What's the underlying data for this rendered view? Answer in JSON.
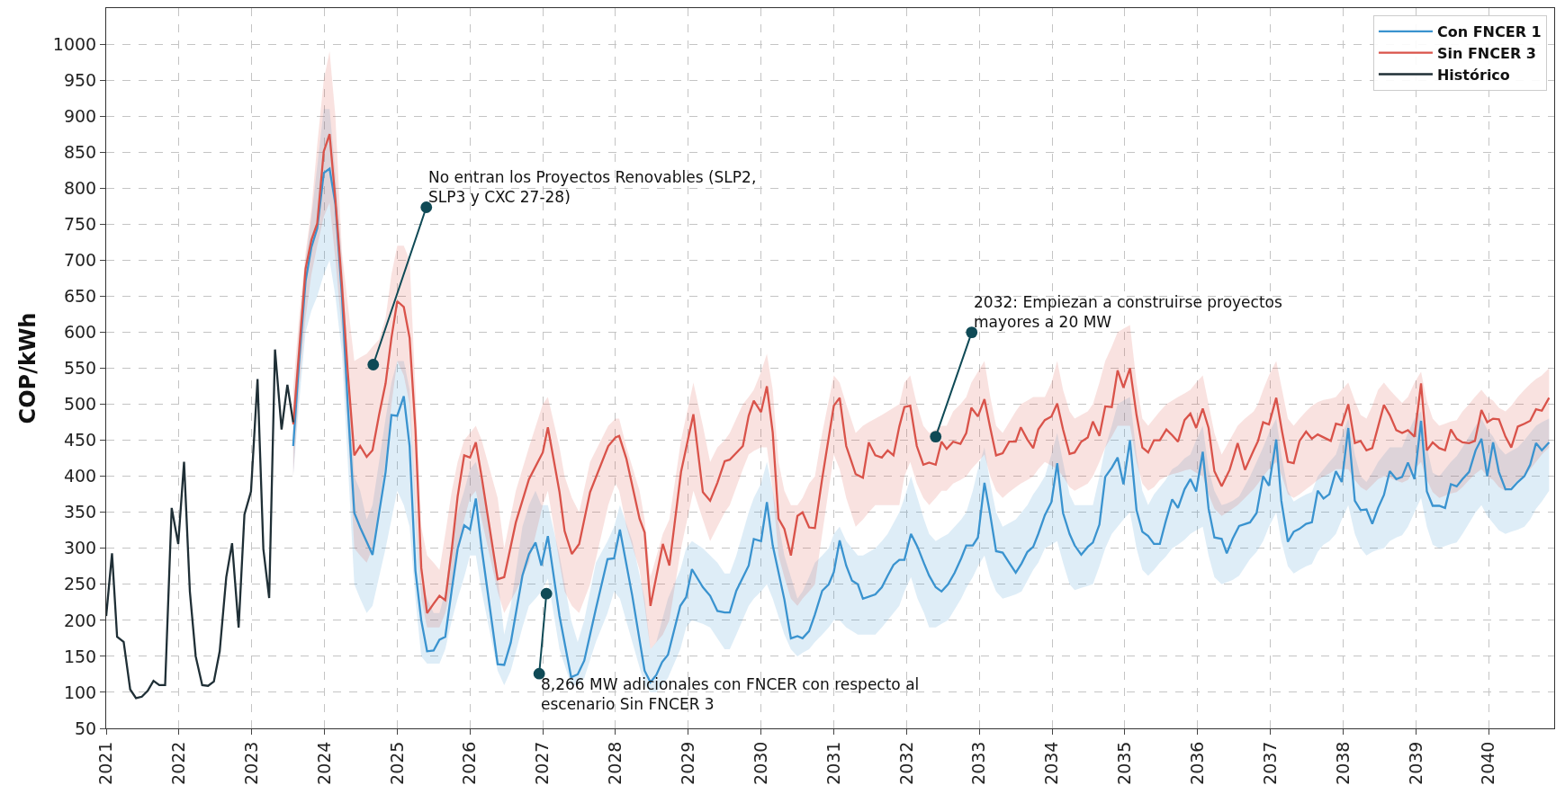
{
  "chart_data": {
    "type": "line",
    "ylabel": "COP/kWh",
    "xlim": [
      2021,
      2040.9
    ],
    "ylim": [
      50,
      1050
    ],
    "xticks": [
      2021,
      2022,
      2023,
      2024,
      2025,
      2026,
      2027,
      2028,
      2029,
      2030,
      2031,
      2032,
      2033,
      2034,
      2035,
      2036,
      2037,
      2038,
      2039,
      2040
    ],
    "yticks": [
      50,
      100,
      150,
      200,
      250,
      300,
      350,
      400,
      450,
      500,
      550,
      600,
      650,
      700,
      750,
      800,
      850,
      900,
      950,
      1000
    ],
    "grid": true,
    "legend": "top right",
    "marker": "none",
    "line_style": "solid",
    "series": [
      {
        "name": "Con FNCER 1",
        "color": "#3a93cf",
        "x": [
          2023.57,
          2023.65,
          2023.74,
          2023.82,
          2023.9,
          2023.99,
          2024.07,
          2024.15,
          2024.24,
          2024.32,
          2024.41,
          2024.49,
          2024.58,
          2024.66,
          2024.75,
          2024.84,
          2024.92,
          2025.0,
          2025.09,
          2025.17,
          2025.25,
          2025.33,
          2025.41,
          2025.5,
          2025.58,
          2025.66,
          2025.75,
          2025.83,
          2025.92,
          2026.0,
          2026.08,
          2026.16,
          2026.38,
          2026.47,
          2026.56,
          2026.72,
          2026.81,
          2026.9,
          2026.98,
          2027.07,
          2027.23,
          2027.39,
          2027.48,
          2027.57,
          2027.73,
          2027.89,
          2027.98,
          2028.06,
          2028.23,
          2028.4,
          2028.48,
          2028.56,
          2028.64,
          2028.72,
          2028.89,
          2028.97,
          2029.05,
          2029.2,
          2029.3,
          2029.4,
          2029.5,
          2029.57,
          2029.66,
          2029.83,
          2029.9,
          2030.0,
          2030.08,
          2030.16,
          2030.32,
          2030.41,
          2030.5,
          2030.57,
          2030.66,
          2030.74,
          2030.84,
          2030.93,
          2031.0,
          2031.08,
          2031.17,
          2031.25,
          2031.33,
          2031.4,
          2031.57,
          2031.66,
          2031.74,
          2031.82,
          2031.9,
          2031.97,
          2032.06,
          2032.15,
          2032.24,
          2032.31,
          2032.4,
          2032.48,
          2032.57,
          2032.66,
          2032.75,
          2032.82,
          2032.91,
          2032.98,
          2033.07,
          2033.15,
          2033.23,
          2033.32,
          2033.41,
          2033.5,
          2033.58,
          2033.66,
          2033.74,
          2033.81,
          2033.9,
          2033.99,
          2034.07,
          2034.15,
          2034.24,
          2034.31,
          2034.4,
          2034.49,
          2034.56,
          2034.65,
          2034.73,
          2034.82,
          2034.9,
          2034.98,
          2035.07,
          2035.16,
          2035.24,
          2035.32,
          2035.4,
          2035.48,
          2035.56,
          2035.65,
          2035.73,
          2035.82,
          2035.9,
          2035.98,
          2036.07,
          2036.15,
          2036.23,
          2036.33,
          2036.4,
          2036.48,
          2036.57,
          2036.72,
          2036.81,
          2036.9,
          2036.98,
          2037.08,
          2037.15,
          2037.24,
          2037.32,
          2037.4,
          2037.49,
          2037.57,
          2037.65,
          2037.73,
          2037.81,
          2037.9,
          2037.98,
          2038.07,
          2038.16,
          2038.24,
          2038.32,
          2038.4,
          2038.48,
          2038.56,
          2038.64,
          2038.73,
          2038.81,
          2038.89,
          2038.98,
          2039.07,
          2039.15,
          2039.23,
          2039.32,
          2039.4,
          2039.48,
          2039.56,
          2039.64,
          2039.73,
          2039.82,
          2039.9,
          2039.98,
          2040.06,
          2040.14,
          2040.23,
          2040.31,
          2040.4,
          2040.49,
          2040.57,
          2040.65,
          2040.73,
          2040.83
        ],
        "values": [
          442,
          558,
          671,
          718,
          744,
          821,
          827,
          778,
          651,
          499,
          349,
          329,
          309,
          291,
          349,
          406,
          485,
          484,
          511,
          442,
          269,
          200,
          157,
          158,
          173,
          177,
          243,
          299,
          332,
          326,
          369,
          300,
          139,
          138,
          169,
          262,
          292,
          308,
          276,
          317,
          206,
          121,
          125,
          144,
          216,
          285,
          286,
          326,
          234,
          130,
          114,
          124,
          142,
          152,
          220,
          232,
          271,
          246,
          234,
          213,
          211,
          211,
          241,
          276,
          313,
          310,
          364,
          304,
          229,
          175,
          178,
          175,
          185,
          208,
          241,
          250,
          267,
          311,
          276,
          255,
          250,
          230,
          236,
          246,
          262,
          277,
          284,
          284,
          320,
          302,
          279,
          262,
          246,
          240,
          250,
          266,
          286,
          304,
          304,
          315,
          391,
          346,
          296,
          294,
          280,
          266,
          279,
          295,
          302,
          320,
          346,
          364,
          418,
          349,
          320,
          304,
          291,
          302,
          308,
          333,
          399,
          412,
          426,
          389,
          450,
          353,
          323,
          317,
          306,
          306,
          337,
          368,
          356,
          382,
          396,
          379,
          434,
          355,
          315,
          313,
          293,
          313,
          331,
          336,
          349,
          400,
          387,
          451,
          366,
          309,
          323,
          327,
          334,
          336,
          380,
          369,
          375,
          407,
          392,
          467,
          366,
          353,
          354,
          334,
          356,
          374,
          407,
          396,
          399,
          419,
          396,
          477,
          379,
          359,
          359,
          356,
          389,
          386,
          396,
          406,
          436,
          452,
          400,
          447,
          406,
          382,
          382,
          392,
          400,
          416,
          446,
          436,
          447
        ],
        "lower": [
          400,
          500,
          600,
          630,
          650,
          680,
          700,
          650,
          570,
          420,
          250,
          230,
          210,
          220,
          260,
          300,
          340,
          380,
          360,
          330,
          230,
          150,
          140,
          140,
          140,
          160,
          200,
          230,
          260,
          290,
          290,
          240,
          130,
          110,
          130,
          190,
          220,
          230,
          240,
          258,
          160,
          110,
          110,
          120,
          170,
          210,
          240,
          230,
          170,
          110,
          100,
          100,
          110,
          120,
          160,
          190,
          200,
          195,
          190,
          175,
          160,
          160,
          180,
          220,
          230,
          240,
          250,
          230,
          180,
          160,
          150,
          155,
          160,
          170,
          180,
          190,
          200,
          200,
          190,
          185,
          180,
          180,
          180,
          190,
          200,
          210,
          220,
          240,
          260,
          230,
          210,
          190,
          190,
          195,
          200,
          215,
          230,
          245,
          260,
          275,
          290,
          260,
          240,
          230,
          233,
          236,
          240,
          255,
          270,
          280,
          300,
          305,
          310,
          280,
          250,
          242,
          245,
          248,
          250,
          275,
          300,
          320,
          330,
          340,
          350,
          300,
          270,
          262,
          270,
          280,
          288,
          300,
          305,
          312,
          320,
          325,
          330,
          290,
          260,
          250,
          253,
          256,
          262,
          285,
          295,
          310,
          330,
          350,
          310,
          275,
          265,
          270,
          275,
          278,
          295,
          305,
          310,
          320,
          340,
          360,
          320,
          300,
          290,
          295,
          298,
          300,
          310,
          315,
          318,
          330,
          350,
          370,
          330,
          305,
          300,
          303,
          306,
          308,
          320,
          335,
          350,
          360,
          345,
          335,
          325,
          320,
          323,
          326,
          330,
          340,
          355,
          365,
          380
        ],
        "upper": [
          490,
          600,
          700,
          760,
          830,
          910,
          910,
          820,
          700,
          560,
          400,
          380,
          340,
          360,
          420,
          480,
          530,
          560,
          560,
          520,
          360,
          250,
          230,
          210,
          210,
          240,
          310,
          350,
          380,
          410,
          420,
          390,
          260,
          180,
          220,
          330,
          360,
          380,
          360,
          360,
          290,
          200,
          170,
          200,
          280,
          310,
          330,
          360,
          310,
          230,
          160,
          170,
          200,
          230,
          270,
          300,
          310,
          300,
          290,
          280,
          265,
          265,
          290,
          350,
          370,
          390,
          420,
          380,
          290,
          260,
          230,
          240,
          260,
          280,
          290,
          300,
          320,
          330,
          310,
          300,
          290,
          290,
          300,
          310,
          320,
          335,
          350,
          370,
          400,
          370,
          340,
          320,
          310,
          315,
          320,
          330,
          340,
          350,
          380,
          410,
          440,
          390,
          350,
          330,
          335,
          340,
          350,
          360,
          375,
          385,
          400,
          430,
          460,
          420,
          375,
          360,
          360,
          360,
          360,
          400,
          440,
          470,
          500,
          505,
          510,
          430,
          380,
          360,
          375,
          385,
          395,
          410,
          415,
          425,
          430,
          450,
          470,
          410,
          380,
          360,
          362,
          366,
          372,
          400,
          420,
          440,
          460,
          480,
          430,
          380,
          365,
          370,
          375,
          378,
          400,
          410,
          420,
          430,
          455,
          480,
          430,
          400,
          392,
          405,
          420,
          430,
          440,
          440,
          440,
          460,
          480,
          490,
          440,
          405,
          400,
          410,
          420,
          428,
          440,
          455,
          470,
          480,
          465,
          455,
          440,
          430,
          435,
          440,
          450,
          460,
          470,
          475,
          480
        ]
      },
      {
        "name": "Sin FNCER 3",
        "color": "#d9534a",
        "x": [
          2023.57,
          2023.65,
          2023.74,
          2023.82,
          2023.9,
          2023.99,
          2024.07,
          2024.15,
          2024.24,
          2024.32,
          2024.41,
          2024.49,
          2024.58,
          2024.66,
          2024.75,
          2024.84,
          2024.92,
          2025.0,
          2025.09,
          2025.17,
          2025.25,
          2025.33,
          2025.41,
          2025.5,
          2025.58,
          2025.66,
          2025.75,
          2025.83,
          2025.92,
          2026.0,
          2026.08,
          2026.16,
          2026.38,
          2026.47,
          2026.63,
          2026.81,
          2027.0,
          2027.07,
          2027.23,
          2027.3,
          2027.4,
          2027.5,
          2027.65,
          2027.9,
          2028.0,
          2028.05,
          2028.15,
          2028.33,
          2028.4,
          2028.48,
          2028.65,
          2028.74,
          2028.9,
          2029.07,
          2029.2,
          2029.3,
          2029.4,
          2029.5,
          2029.57,
          2029.75,
          2029.83,
          2029.9,
          2030.0,
          2030.08,
          2030.16,
          2030.24,
          2030.32,
          2030.41,
          2030.5,
          2030.57,
          2030.66,
          2030.74,
          2030.84,
          2031.0,
          2031.08,
          2031.17,
          2031.3,
          2031.4,
          2031.48,
          2031.57,
          2031.66,
          2031.74,
          2031.82,
          2031.9,
          2031.97,
          2032.05,
          2032.14,
          2032.23,
          2032.31,
          2032.4,
          2032.48,
          2032.55,
          2032.64,
          2032.74,
          2032.82,
          2032.89,
          2032.98,
          2033.07,
          2033.15,
          2033.23,
          2033.32,
          2033.41,
          2033.5,
          2033.57,
          2033.66,
          2033.74,
          2033.81,
          2033.9,
          2033.99,
          2034.07,
          2034.15,
          2034.24,
          2034.31,
          2034.4,
          2034.49,
          2034.56,
          2034.65,
          2034.73,
          2034.82,
          2034.9,
          2034.98,
          2035.07,
          2035.16,
          2035.24,
          2035.32,
          2035.4,
          2035.48,
          2035.57,
          2035.65,
          2035.73,
          2035.82,
          2035.9,
          2035.98,
          2036.07,
          2036.15,
          2036.23,
          2036.33,
          2036.44,
          2036.55,
          2036.65,
          2036.77,
          2036.83,
          2036.9,
          2036.98,
          2037.08,
          2037.16,
          2037.24,
          2037.32,
          2037.4,
          2037.49,
          2037.57,
          2037.65,
          2037.73,
          2037.83,
          2037.9,
          2037.98,
          2038.07,
          2038.16,
          2038.24,
          2038.32,
          2038.4,
          2038.48,
          2038.56,
          2038.64,
          2038.73,
          2038.81,
          2038.89,
          2038.98,
          2039.07,
          2039.15,
          2039.23,
          2039.32,
          2039.4,
          2039.48,
          2039.56,
          2039.64,
          2039.73,
          2039.81,
          2039.9,
          2039.98,
          2040.06,
          2040.14,
          2040.23,
          2040.31,
          2040.4,
          2040.49,
          2040.57,
          2040.65,
          2040.73,
          2040.83
        ],
        "values": [
          472,
          572,
          688,
          728,
          751,
          851,
          875,
          784,
          665,
          545,
          429,
          442,
          427,
          436,
          485,
          529,
          592,
          643,
          635,
          592,
          465,
          273,
          210,
          223,
          234,
          228,
          299,
          372,
          429,
          426,
          447,
          399,
          257,
          260,
          336,
          396,
          433,
          468,
          378,
          324,
          292,
          306,
          378,
          442,
          454,
          456,
          424,
          341,
          322,
          220,
          306,
          276,
          406,
          486,
          378,
          366,
          391,
          421,
          423,
          442,
          484,
          505,
          489,
          525,
          461,
          341,
          327,
          290,
          345,
          350,
          329,
          328,
          397,
          498,
          509,
          442,
          403,
          398,
          447,
          429,
          426,
          436,
          429,
          469,
          496,
          498,
          442,
          416,
          419,
          416,
          448,
          438,
          448,
          445,
          460,
          495,
          483,
          507,
          467,
          429,
          432,
          448,
          448,
          468,
          451,
          439,
          465,
          478,
          483,
          501,
          465,
          431,
          433,
          448,
          454,
          476,
          456,
          497,
          496,
          547,
          523,
          550,
          485,
          440,
          433,
          450,
          450,
          465,
          457,
          448,
          478,
          487,
          467,
          494,
          467,
          407,
          386,
          409,
          446,
          409,
          436,
          449,
          475,
          472,
          509,
          462,
          420,
          418,
          449,
          462,
          452,
          458,
          454,
          449,
          473,
          471,
          500,
          446,
          449,
          436,
          439,
          469,
          499,
          485,
          464,
          460,
          464,
          455,
          529,
          436,
          447,
          439,
          436,
          465,
          452,
          447,
          446,
          449,
          492,
          475,
          480,
          479,
          455,
          440,
          469,
          473,
          477,
          493,
          491,
          509
        ],
        "lower": [
          400,
          520,
          620,
          680,
          720,
          760,
          780,
          700,
          600,
          470,
          300,
          290,
          280,
          300,
          360,
          420,
          500,
          560,
          540,
          500,
          350,
          230,
          190,
          190,
          190,
          210,
          250,
          300,
          340,
          370,
          380,
          340,
          240,
          210,
          240,
          280,
          360,
          380,
          280,
          240,
          220,
          210,
          250,
          360,
          390,
          380,
          330,
          270,
          220,
          160,
          180,
          200,
          300,
          380,
          340,
          310,
          330,
          350,
          360,
          410,
          430,
          435,
          440,
          440,
          380,
          290,
          260,
          230,
          220,
          230,
          240,
          250,
          320,
          430,
          410,
          370,
          330,
          340,
          350,
          360,
          360,
          360,
          360,
          360,
          400,
          420,
          390,
          370,
          360,
          370,
          380,
          380,
          390,
          395,
          400,
          410,
          420,
          430,
          400,
          380,
          370,
          378,
          385,
          390,
          395,
          400,
          410,
          420,
          415,
          410,
          400,
          385,
          380,
          385,
          390,
          400,
          420,
          440,
          455,
          470,
          470,
          470,
          420,
          390,
          380,
          385,
          395,
          400,
          403,
          405,
          408,
          410,
          405,
          400,
          375,
          355,
          345,
          352,
          360,
          370,
          382,
          390,
          400,
          410,
          420,
          400,
          375,
          370,
          375,
          382,
          388,
          395,
          400,
          405,
          410,
          410,
          410,
          395,
          385,
          380,
          388,
          396,
          400,
          398,
          394,
          391,
          395,
          410,
          420,
          395,
          378,
          370,
          373,
          376,
          378,
          385,
          395,
          403,
          410,
          400,
          395,
          385,
          380,
          385,
          395,
          400,
          410,
          420,
          430,
          440
        ],
        "upper": [
          520,
          620,
          710,
          770,
          860,
          950,
          990,
          900,
          710,
          640,
          560,
          565,
          570,
          580,
          590,
          620,
          680,
          720,
          720,
          700,
          520,
          330,
          290,
          280,
          270,
          320,
          380,
          420,
          450,
          460,
          470,
          450,
          370,
          300,
          380,
          440,
          500,
          510,
          440,
          400,
          370,
          350,
          420,
          470,
          480,
          480,
          440,
          380,
          340,
          260,
          320,
          340,
          450,
          530,
          470,
          420,
          440,
          450,
          460,
          500,
          510,
          520,
          545,
          570,
          520,
          420,
          380,
          360,
          360,
          370,
          390,
          400,
          460,
          540,
          530,
          500,
          460,
          470,
          475,
          480,
          485,
          490,
          495,
          500,
          530,
          540,
          500,
          470,
          460,
          465,
          470,
          470,
          490,
          500,
          510,
          530,
          545,
          560,
          510,
          470,
          460,
          475,
          490,
          500,
          505,
          510,
          510,
          510,
          530,
          560,
          520,
          490,
          480,
          485,
          490,
          500,
          530,
          560,
          580,
          600,
          605,
          610,
          530,
          480,
          470,
          480,
          490,
          500,
          505,
          510,
          515,
          520,
          530,
          540,
          500,
          460,
          430,
          450,
          470,
          480,
          490,
          500,
          520,
          540,
          560,
          520,
          480,
          470,
          480,
          490,
          498,
          503,
          506,
          508,
          510,
          520,
          530,
          505,
          485,
          480,
          498,
          520,
          530,
          520,
          510,
          502,
          510,
          530,
          545,
          505,
          480,
          470,
          473,
          476,
          478,
          490,
          500,
          510,
          520,
          510,
          505,
          495,
          490,
          498,
          510,
          520,
          528,
          535,
          540,
          550
        ]
      },
      {
        "name": "Histórico",
        "color": "#1f2f36",
        "x": [
          2021.0,
          2021.08,
          2021.15,
          2021.24,
          2021.33,
          2021.41,
          2021.49,
          2021.57,
          2021.65,
          2021.73,
          2021.81,
          2021.9,
          2021.99,
          2022.07,
          2022.15,
          2022.23,
          2022.32,
          2022.4,
          2022.48,
          2022.56,
          2022.65,
          2022.73,
          2022.82,
          2022.9,
          2022.99,
          2023.08,
          2023.16,
          2023.24,
          2023.32,
          2023.41,
          2023.49,
          2023.57
        ],
        "values": [
          206,
          293,
          177,
          170,
          104,
          92,
          94,
          102,
          116,
          110,
          110,
          356,
          306,
          420,
          240,
          150,
          110,
          109,
          115,
          157,
          260,
          307,
          190,
          347,
          379,
          535,
          299,
          231,
          576,
          465,
          527,
          475
        ]
      }
    ],
    "annotations": [
      {
        "text": "No entran los Proyectos Renovables (SLP2,\nSLP3 y CXC 27-28)",
        "x": 2024.67,
        "y": 555
      },
      {
        "text": "2032: Empiezan a construirse proyectos\nmayores a 20 MW",
        "x": 2032.4,
        "y": 455
      },
      {
        "text": "8,266 MW adicionales con FNCER con respecto al\nescenario Sin FNCER 3",
        "x": 2027.05,
        "y": 237
      }
    ]
  }
}
